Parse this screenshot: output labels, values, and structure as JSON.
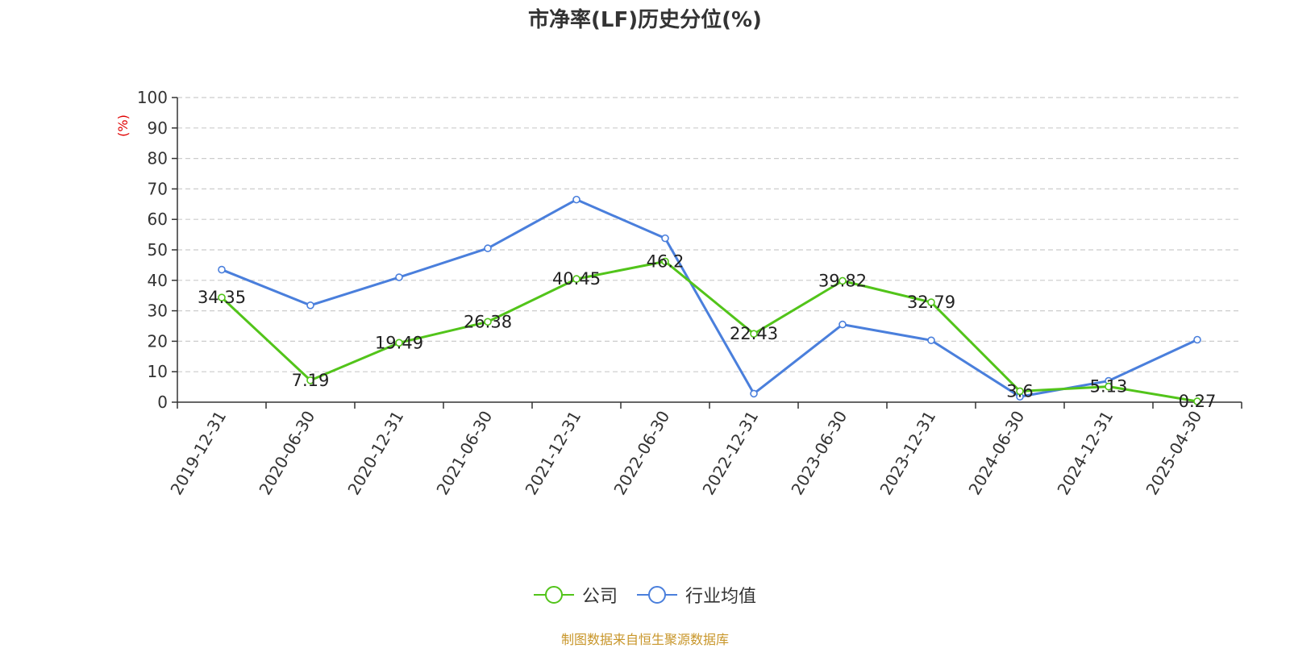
{
  "chart_data": {
    "type": "line",
    "title": "市净率(LF)历史分位(%)",
    "ylabel": "(%)",
    "ylim": [
      0,
      100
    ],
    "yticks": [
      0,
      10,
      20,
      30,
      40,
      50,
      60,
      70,
      80,
      90,
      100
    ],
    "grid": true,
    "legend_position": "bottom-center",
    "categories": [
      "2019-12-31",
      "2020-06-30",
      "2020-12-31",
      "2021-06-30",
      "2021-12-31",
      "2022-06-30",
      "2022-12-31",
      "2023-06-30",
      "2023-12-31",
      "2024-06-30",
      "2024-12-31",
      "2025-04-30"
    ],
    "series": [
      {
        "name": "公司",
        "color": "#52c41a",
        "values": [
          34.35,
          7.19,
          19.49,
          26.38,
          40.45,
          46.2,
          22.43,
          39.82,
          32.79,
          3.6,
          5.13,
          0.27
        ],
        "labels": [
          "34.35",
          "7.19",
          "19.49",
          "26.38",
          "40.45",
          "46.2",
          "22.43",
          "39.82",
          "32.79",
          "3.6",
          "5.13",
          "0.27"
        ]
      },
      {
        "name": "行业均值",
        "color": "#4a7fdc",
        "values": [
          43.5,
          31.8,
          41.0,
          50.5,
          66.5,
          53.8,
          2.8,
          25.5,
          20.3,
          1.8,
          7.0,
          20.5
        ]
      }
    ],
    "source": "制图数据来自恒生聚源数据库"
  }
}
